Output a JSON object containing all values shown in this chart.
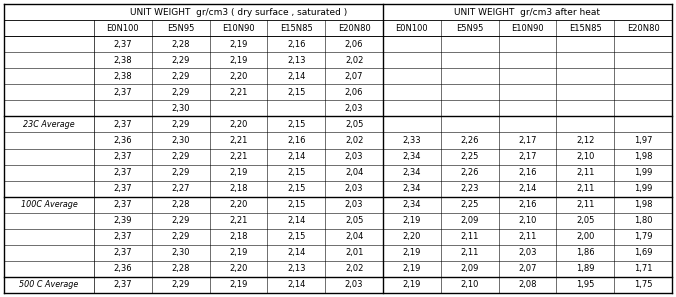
{
  "title_left": "UNIT WEIGHT  gr/cm3 ( dry surface , saturated )",
  "title_right": "UNIT WEIGHT  gr/cm3 after heat",
  "col_headers": [
    "E0N100",
    "E5N95",
    "E10N90",
    "E15N85",
    "E20N80",
    "E0N100",
    "E5N95",
    "E10N90",
    "E15N85",
    "E20N80"
  ],
  "row_labels": [
    "",
    "",
    "",
    "",
    "",
    "23C Average",
    "",
    "",
    "",
    "",
    "100C Average",
    "",
    "",
    "",
    "",
    "500 C Average"
  ],
  "rows": [
    [
      "2,37",
      "2,28",
      "2,19",
      "2,16",
      "2,06",
      "",
      "",
      "",
      "",
      ""
    ],
    [
      "2,38",
      "2,29",
      "2,19",
      "2,13",
      "2,02",
      "",
      "",
      "",
      "",
      ""
    ],
    [
      "2,38",
      "2,29",
      "2,20",
      "2,14",
      "2,07",
      "",
      "",
      "",
      "",
      ""
    ],
    [
      "2,37",
      "2,29",
      "2,21",
      "2,15",
      "2,06",
      "",
      "",
      "",
      "",
      ""
    ],
    [
      "",
      "2,30",
      "",
      "",
      "2,03",
      "",
      "",
      "",
      "",
      ""
    ],
    [
      "2,37",
      "2,29",
      "2,20",
      "2,15",
      "2,05",
      "",
      "",
      "",
      "",
      ""
    ],
    [
      "2,36",
      "2,30",
      "2,21",
      "2,16",
      "2,02",
      "2,33",
      "2,26",
      "2,17",
      "2,12",
      "1,97"
    ],
    [
      "2,37",
      "2,29",
      "2,21",
      "2,14",
      "2,03",
      "2,34",
      "2,25",
      "2,17",
      "2,10",
      "1,98"
    ],
    [
      "2,37",
      "2,29",
      "2,19",
      "2,15",
      "2,04",
      "2,34",
      "2,26",
      "2,16",
      "2,11",
      "1,99"
    ],
    [
      "2,37",
      "2,27",
      "2,18",
      "2,15",
      "2,03",
      "2,34",
      "2,23",
      "2,14",
      "2,11",
      "1,99"
    ],
    [
      "2,37",
      "2,28",
      "2,20",
      "2,15",
      "2,03",
      "2,34",
      "2,25",
      "2,16",
      "2,11",
      "1,98"
    ],
    [
      "2,39",
      "2,29",
      "2,21",
      "2,14",
      "2,05",
      "2,19",
      "2,09",
      "2,10",
      "2,05",
      "1,80"
    ],
    [
      "2,37",
      "2,29",
      "2,18",
      "2,15",
      "2,04",
      "2,20",
      "2,11",
      "2,11",
      "2,00",
      "1,79"
    ],
    [
      "2,37",
      "2,30",
      "2,19",
      "2,14",
      "2,01",
      "2,19",
      "2,11",
      "2,03",
      "1,86",
      "1,69"
    ],
    [
      "2,36",
      "2,28",
      "2,20",
      "2,13",
      "2,02",
      "2,19",
      "2,09",
      "2,07",
      "1,89",
      "1,71"
    ],
    [
      "2,37",
      "2,29",
      "2,19",
      "2,14",
      "2,03",
      "2,19",
      "2,10",
      "2,08",
      "1,95",
      "1,75"
    ]
  ],
  "average_row_indices": [
    5,
    10,
    15
  ],
  "bg_color": "#ffffff",
  "line_color": "#000000",
  "text_color": "#000000",
  "data_fontsize": 6.0,
  "header_fontsize": 6.5,
  "label_fontsize": 5.8
}
